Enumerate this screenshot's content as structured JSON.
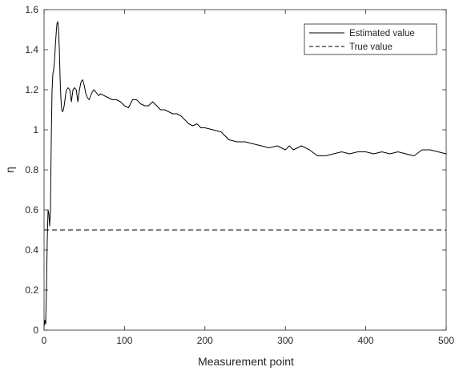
{
  "chart_data": {
    "type": "line",
    "title": "",
    "xlabel": "Measurement point",
    "ylabel": "η",
    "xlim": [
      0,
      500
    ],
    "ylim": [
      0,
      1.6
    ],
    "xticks": [
      0,
      100,
      200,
      300,
      400,
      500
    ],
    "yticks": [
      0,
      0.2,
      0.4,
      0.6,
      0.8,
      1,
      1.2,
      1.4,
      1.6
    ],
    "xtick_labels": [
      "0",
      "100",
      "200",
      "300",
      "400",
      "500"
    ],
    "ytick_labels": [
      "0",
      "0.2",
      "0.4",
      "0.6",
      "0.8",
      "1",
      "1.2",
      "1.4",
      "1.6"
    ],
    "grid": false,
    "legend_position": "top-right",
    "series": [
      {
        "name": "Estimated value",
        "style": "solid",
        "color": "#000000",
        "x": [
          0,
          1,
          2,
          3,
          4,
          5,
          6,
          7,
          8,
          9,
          10,
          11,
          12,
          13,
          14,
          15,
          16,
          17,
          18,
          19,
          20,
          21,
          22,
          23,
          24,
          25,
          26,
          27,
          28,
          30,
          32,
          34,
          36,
          38,
          40,
          42,
          44,
          46,
          48,
          50,
          52,
          54,
          56,
          58,
          60,
          62,
          64,
          66,
          68,
          70,
          75,
          80,
          85,
          90,
          95,
          100,
          105,
          110,
          115,
          120,
          125,
          130,
          135,
          140,
          145,
          150,
          155,
          160,
          165,
          170,
          175,
          180,
          185,
          190,
          195,
          200,
          210,
          220,
          230,
          240,
          250,
          260,
          270,
          280,
          290,
          300,
          305,
          310,
          315,
          320,
          330,
          340,
          350,
          360,
          370,
          380,
          390,
          400,
          410,
          420,
          430,
          440,
          450,
          460,
          470,
          480,
          490,
          500
        ],
        "y": [
          0.02,
          0.05,
          0.03,
          0.2,
          0.45,
          0.6,
          0.58,
          0.52,
          0.6,
          0.95,
          1.2,
          1.28,
          1.3,
          1.35,
          1.42,
          1.48,
          1.53,
          1.54,
          1.5,
          1.4,
          1.25,
          1.15,
          1.1,
          1.09,
          1.1,
          1.12,
          1.15,
          1.18,
          1.2,
          1.21,
          1.2,
          1.14,
          1.2,
          1.21,
          1.2,
          1.14,
          1.2,
          1.24,
          1.25,
          1.22,
          1.18,
          1.16,
          1.15,
          1.17,
          1.19,
          1.2,
          1.19,
          1.18,
          1.17,
          1.18,
          1.17,
          1.16,
          1.15,
          1.15,
          1.14,
          1.12,
          1.11,
          1.15,
          1.15,
          1.13,
          1.12,
          1.12,
          1.14,
          1.12,
          1.1,
          1.1,
          1.09,
          1.08,
          1.08,
          1.07,
          1.05,
          1.03,
          1.02,
          1.03,
          1.01,
          1.01,
          1.0,
          0.99,
          0.95,
          0.94,
          0.94,
          0.93,
          0.92,
          0.91,
          0.92,
          0.9,
          0.92,
          0.9,
          0.91,
          0.92,
          0.9,
          0.87,
          0.87,
          0.88,
          0.89,
          0.88,
          0.89,
          0.89,
          0.88,
          0.89,
          0.88,
          0.89,
          0.88,
          0.87,
          0.9,
          0.9,
          0.89,
          0.88
        ]
      },
      {
        "name": "True value",
        "style": "dashed",
        "color": "#000000",
        "x": [
          0,
          500
        ],
        "y": [
          0.5,
          0.5
        ]
      }
    ]
  }
}
